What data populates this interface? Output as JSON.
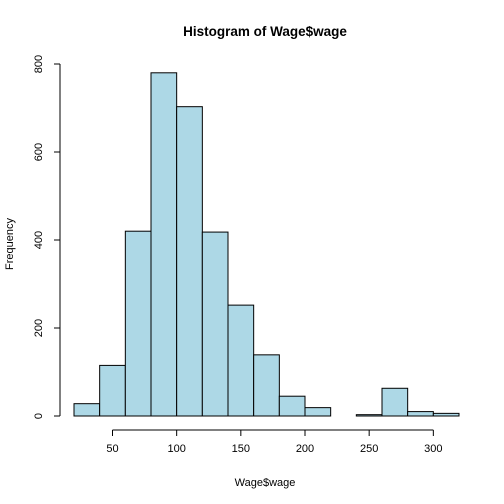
{
  "chart_data": {
    "type": "bar",
    "title": "Histogram of Wage$wage",
    "xlabel": "Wage$wage",
    "ylabel": "Frequency",
    "bin_edges": [
      20,
      40,
      60,
      80,
      100,
      120,
      140,
      160,
      180,
      200,
      220,
      240,
      260,
      280,
      300,
      320
    ],
    "values": [
      28,
      115,
      420,
      780,
      703,
      418,
      252,
      139,
      45,
      19,
      0,
      3,
      63,
      10,
      6
    ],
    "xlim": [
      20,
      320
    ],
    "ylim": [
      0,
      800
    ],
    "x_ticks": [
      50,
      100,
      150,
      200,
      250,
      300
    ],
    "y_ticks": [
      0,
      200,
      400,
      600,
      800
    ],
    "bar_color": "#add8e6",
    "grid": false,
    "legend": "none"
  }
}
